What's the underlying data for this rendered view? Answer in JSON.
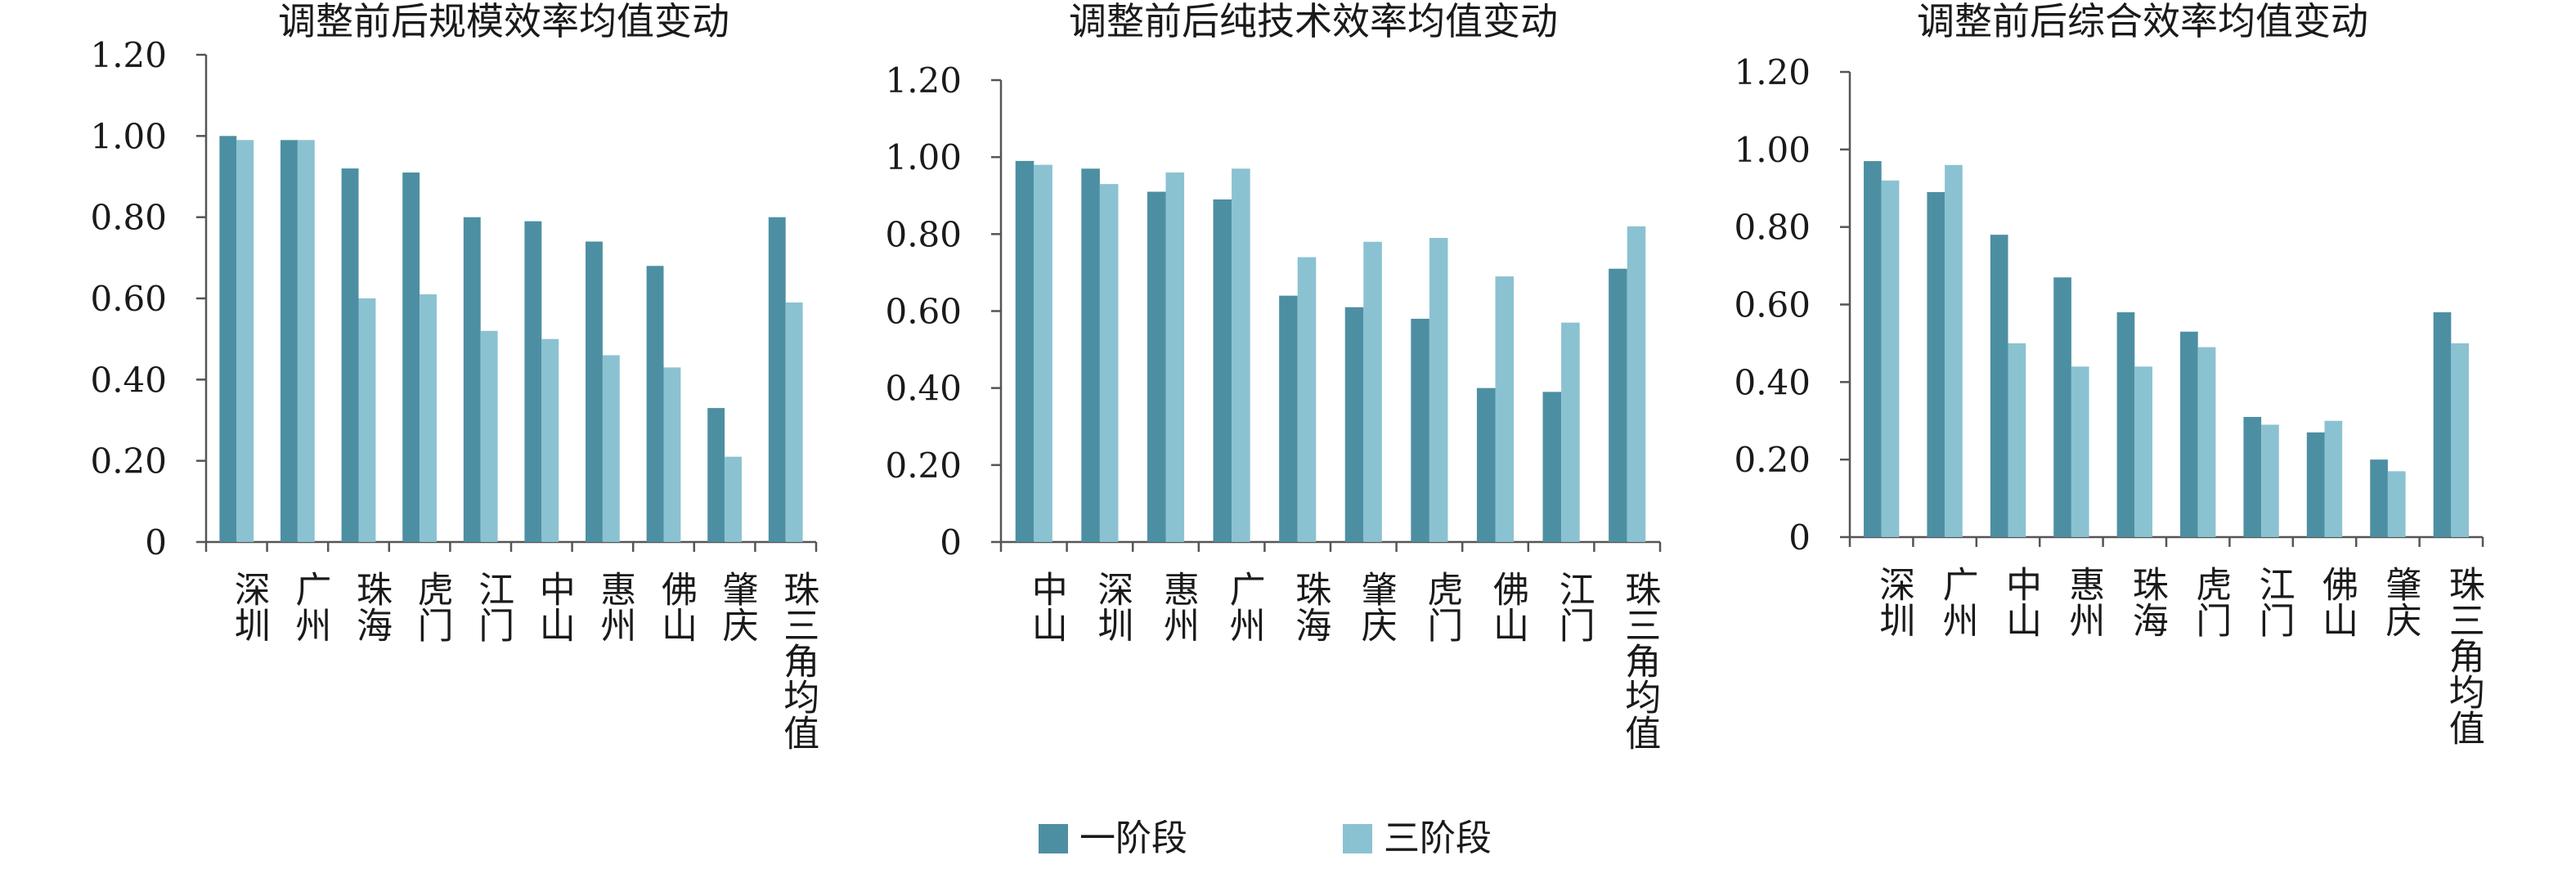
{
  "colors": {
    "stage1": "#4d8fa2",
    "stage3": "#8bc2d1"
  },
  "legend": {
    "stage1": "一阶段",
    "stage3": "三阶段"
  },
  "chart_data": [
    {
      "type": "bar",
      "title": "调整前后规模效率均值变动",
      "categories": [
        "深圳",
        "广州",
        "珠海",
        "虎门",
        "江门",
        "中山",
        "惠州",
        "佛山",
        "肇庆",
        "珠三角均值"
      ],
      "series": [
        {
          "name": "一阶段",
          "values": [
            1.0,
            0.99,
            0.92,
            0.91,
            0.8,
            0.79,
            0.74,
            0.68,
            0.33,
            0.8
          ]
        },
        {
          "name": "三阶段",
          "values": [
            0.99,
            0.99,
            0.6,
            0.61,
            0.52,
            0.5,
            0.46,
            0.43,
            0.21,
            0.59
          ]
        }
      ],
      "yticks": [
        "0",
        "0.20",
        "0.40",
        "0.60",
        "0.80",
        "1.00",
        "1.20"
      ],
      "ylim": [
        0,
        1.2
      ],
      "grid": false
    },
    {
      "type": "bar",
      "title": "调整前后纯技术效率均值变动",
      "categories": [
        "中山",
        "深圳",
        "惠州",
        "广州",
        "珠海",
        "肇庆",
        "虎门",
        "佛山",
        "江门",
        "珠三角均值"
      ],
      "series": [
        {
          "name": "一阶段",
          "values": [
            0.99,
            0.97,
            0.91,
            0.89,
            0.64,
            0.61,
            0.58,
            0.4,
            0.39,
            0.71
          ]
        },
        {
          "name": "三阶段",
          "values": [
            0.98,
            0.93,
            0.96,
            0.97,
            0.74,
            0.78,
            0.79,
            0.69,
            0.57,
            0.82
          ]
        }
      ],
      "yticks": [
        "0",
        "0.20",
        "0.40",
        "0.60",
        "0.80",
        "1.00",
        "1.20"
      ],
      "ylim": [
        0,
        1.2
      ],
      "grid": false
    },
    {
      "type": "bar",
      "title": "调整前后综合效率均值变动",
      "categories": [
        "深圳",
        "广州",
        "中山",
        "惠州",
        "珠海",
        "虎门",
        "江门",
        "佛山",
        "肇庆",
        "珠三角均值"
      ],
      "series": [
        {
          "name": "一阶段",
          "values": [
            0.97,
            0.89,
            0.78,
            0.67,
            0.58,
            0.53,
            0.31,
            0.27,
            0.2,
            0.58
          ]
        },
        {
          "name": "三阶段",
          "values": [
            0.92,
            0.96,
            0.5,
            0.44,
            0.44,
            0.49,
            0.29,
            0.3,
            0.17,
            0.5
          ]
        }
      ],
      "yticks": [
        "0",
        "0.20",
        "0.40",
        "0.60",
        "0.80",
        "1.00",
        "1.20"
      ],
      "ylim": [
        0,
        1.2
      ],
      "grid": false
    }
  ]
}
